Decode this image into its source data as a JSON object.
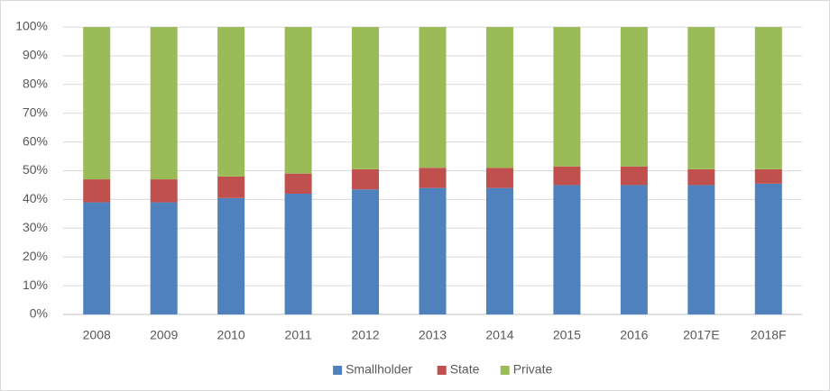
{
  "chart_data": {
    "type": "stacked_bar",
    "categories": [
      "2008",
      "2009",
      "2010",
      "2011",
      "2012",
      "2013",
      "2014",
      "2015",
      "2016",
      "2017E",
      "2018F"
    ],
    "series": [
      {
        "name": "Smallholder",
        "color": "#4f81bd",
        "values": [
          39,
          39,
          40.5,
          42,
          43.5,
          44,
          44,
          45,
          45,
          45,
          45.5
        ]
      },
      {
        "name": "State",
        "color": "#c0504d",
        "values": [
          8,
          8,
          7.5,
          7,
          7,
          7,
          7,
          6.5,
          6.5,
          5.5,
          5
        ]
      },
      {
        "name": "Private",
        "color": "#9bbb59",
        "values": [
          53,
          53,
          52,
          51,
          49.5,
          49,
          49,
          48.5,
          48.5,
          49.5,
          49.5
        ]
      }
    ],
    "ylim": [
      0,
      100
    ],
    "yticks": [
      {
        "value": 0,
        "label": "0%"
      },
      {
        "value": 10,
        "label": "10%"
      },
      {
        "value": 20,
        "label": "20%"
      },
      {
        "value": 30,
        "label": "30%"
      },
      {
        "value": 40,
        "label": "40%"
      },
      {
        "value": 50,
        "label": "50%"
      },
      {
        "value": 60,
        "label": "60%"
      },
      {
        "value": 70,
        "label": "70%"
      },
      {
        "value": 80,
        "label": "80%"
      },
      {
        "value": 90,
        "label": "90%"
      },
      {
        "value": 100,
        "label": "100%"
      }
    ],
    "grid": true,
    "legend": "bottom"
  }
}
